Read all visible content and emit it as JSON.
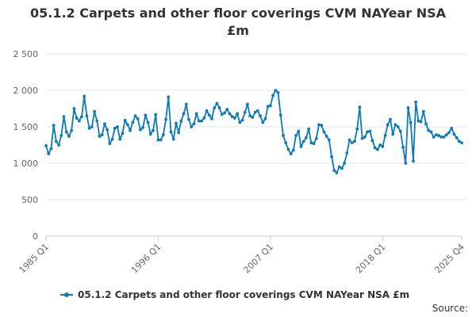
{
  "chart_data": {
    "type": "line",
    "title_lines": [
      "05.1.2 Carpets and other floor coverings CVM NAYear NSA",
      "£m"
    ],
    "xlabel": "",
    "ylabel": "",
    "ylim": [
      0,
      2500
    ],
    "y_ticks": [
      0,
      500,
      1000,
      1500,
      2000,
      2500
    ],
    "y_tick_labels": [
      "0",
      "500",
      "1 000",
      "1 500",
      "2 000",
      "2 500"
    ],
    "x_tick_labels": [
      {
        "label": "1985 Q1",
        "index": 0
      },
      {
        "label": "1996 Q1",
        "index": 44
      },
      {
        "label": "2007 Q1",
        "index": 88
      },
      {
        "label": "2018 Q1",
        "index": 132
      },
      {
        "label": "2025 Q4",
        "index": 163
      }
    ],
    "grid": true,
    "legend_position": "bottom",
    "series": [
      {
        "name": "05.1.2 Carpets and other floor coverings CVM NAYear NSA £m",
        "color": "#0d7ab7",
        "values": [
          1240,
          1130,
          1200,
          1520,
          1300,
          1250,
          1380,
          1640,
          1430,
          1370,
          1450,
          1750,
          1620,
          1580,
          1640,
          1920,
          1650,
          1480,
          1500,
          1710,
          1580,
          1370,
          1390,
          1540,
          1460,
          1270,
          1330,
          1480,
          1500,
          1330,
          1410,
          1590,
          1530,
          1450,
          1560,
          1650,
          1610,
          1460,
          1490,
          1660,
          1560,
          1400,
          1450,
          1670,
          1320,
          1320,
          1390,
          1600,
          1910,
          1430,
          1330,
          1550,
          1420,
          1580,
          1680,
          1810,
          1600,
          1500,
          1540,
          1680,
          1580,
          1580,
          1620,
          1720,
          1660,
          1610,
          1760,
          1820,
          1760,
          1670,
          1690,
          1740,
          1680,
          1640,
          1620,
          1680,
          1560,
          1590,
          1700,
          1810,
          1650,
          1630,
          1700,
          1720,
          1650,
          1560,
          1610,
          1780,
          1790,
          1930,
          2000,
          1970,
          1660,
          1380,
          1280,
          1190,
          1130,
          1180,
          1380,
          1440,
          1230,
          1300,
          1350,
          1470,
          1280,
          1270,
          1340,
          1530,
          1520,
          1430,
          1370,
          1320,
          1090,
          900,
          870,
          950,
          930,
          1000,
          1140,
          1320,
          1280,
          1300,
          1470,
          1770,
          1340,
          1360,
          1430,
          1440,
          1310,
          1210,
          1190,
          1250,
          1230,
          1380,
          1530,
          1600,
          1400,
          1530,
          1500,
          1440,
          1220,
          1000,
          1760,
          1560,
          1030,
          1840,
          1580,
          1570,
          1710,
          1540,
          1450,
          1430,
          1360,
          1390,
          1380,
          1360,
          1360,
          1390,
          1420,
          1480,
          1400,
          1350,
          1300,
          1280
        ]
      }
    ]
  },
  "legend": {
    "label": "05.1.2 Carpets and other floor coverings CVM NAYear NSA £m"
  },
  "footer": {
    "source_label": "Source:"
  }
}
